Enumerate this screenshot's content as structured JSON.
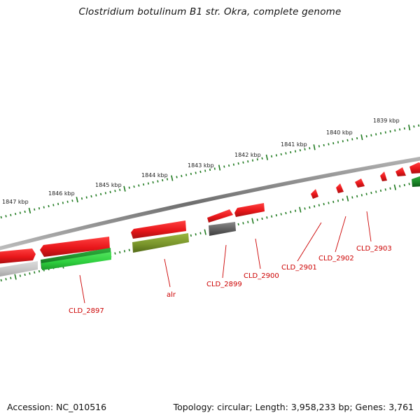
{
  "title": "Clostridium botulinum B1 str. Okra, complete genome",
  "footer": {
    "accession": "Accession: NC_010516",
    "stats": "Topology: circular; Length: 3,958,233 bp; Genes: 3,761"
  },
  "colors": {
    "backbone": "#7a7a7a",
    "tick": "#1f7a1f",
    "label": "#cc0000",
    "gene_red": "#e8161a",
    "gene_gray": "#6a6a6a",
    "gene_lightgray": "#c2c2c2",
    "gene_green": "#1f9a2f",
    "gene_olive": "#7e9a2e"
  },
  "scale_labels": [
    "1839 kbp",
    "1840 kbp",
    "1841 kbp",
    "1842 kbp",
    "1843 kbp",
    "1844 kbp",
    "1845 kbp",
    "1846 kbp",
    "1847 kbp"
  ],
  "gene_labels": [
    "CLD_2897",
    "alr",
    "CLD_2899",
    "CLD_2900",
    "CLD_2901",
    "CLD_2902",
    "CLD_2903"
  ]
}
